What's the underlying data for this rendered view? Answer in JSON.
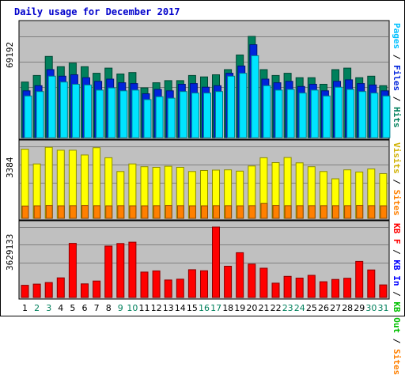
{
  "title": "Daily usage for December 2017",
  "colors": {
    "panel_bg": "#c0c0c0",
    "hits": "#00805c",
    "files": "#0024dc",
    "pages": "#00e4ff",
    "visits": "#ffff00",
    "sites": "#ff8000",
    "kb_in": "#0000ff",
    "kb_out": "#00c000",
    "kb_f": "#ff0000",
    "day_label": "#000000",
    "weekend_label": "#00805c",
    "title": "#0000cc"
  },
  "panels": {
    "top": {
      "max_label": "69192",
      "right_label_parts": [
        {
          "text": "Pages",
          "color": "#00c0ff"
        },
        {
          "text": " / ",
          "color": "#000000"
        },
        {
          "text": "Files",
          "color": "#0024dc"
        },
        {
          "text": " / ",
          "color": "#000000"
        },
        {
          "text": "Hits",
          "color": "#00805c"
        }
      ]
    },
    "middle": {
      "max_label": "3384",
      "right_label_parts": [
        {
          "text": "Visits",
          "color": "#d0b000"
        },
        {
          "text": " / ",
          "color": "#000000"
        },
        {
          "text": "Sites",
          "color": "#ff8000"
        }
      ]
    },
    "bottom": {
      "max_label": "3629133",
      "right_label_parts": [
        {
          "text": "KB F",
          "color": "#ff0000"
        },
        {
          "text": " / ",
          "color": "#000000"
        },
        {
          "text": "KB In",
          "color": "#0000ff"
        },
        {
          "text": " / ",
          "color": "#000000"
        },
        {
          "text": "KB Out",
          "color": "#00c000"
        },
        {
          "text": " / ",
          "color": "#000000"
        },
        {
          "text": "Sites",
          "color": "#ff8000"
        }
      ]
    }
  },
  "chart_data": {
    "type": "bar",
    "title": "Daily usage for December 2017",
    "categories": [
      "1",
      "2",
      "3",
      "4",
      "5",
      "6",
      "7",
      "8",
      "9",
      "10",
      "11",
      "12",
      "13",
      "14",
      "15",
      "16",
      "17",
      "18",
      "19",
      "20",
      "21",
      "22",
      "23",
      "24",
      "25",
      "26",
      "27",
      "28",
      "29",
      "30",
      "31"
    ],
    "weekend_days": [
      "2",
      "3",
      "9",
      "10",
      "16",
      "17",
      "23",
      "24",
      "30",
      "31"
    ],
    "panels": [
      {
        "name": "top",
        "ylim": [
          0,
          69192
        ],
        "series": [
          {
            "name": "Hits",
            "values": [
              38000,
              42500,
              55500,
              48500,
              51000,
              48500,
              44000,
              47500,
              43500,
              44500,
              34000,
              37500,
              39000,
              39000,
              42500,
              41500,
              43000,
              46500,
              56500,
              69192,
              46500,
              42500,
              44000,
              41000,
              41000,
              36500,
              46500,
              47500,
              41000,
              42000,
              35500
            ]
          },
          {
            "name": "Files",
            "values": [
              32000,
              35500,
              46500,
              42000,
              43000,
              41000,
              38500,
              40000,
              37500,
              37000,
              30000,
              33000,
              32000,
              36500,
              37000,
              34500,
              35500,
              44000,
              49000,
              63500,
              40000,
              37500,
              38500,
              35000,
              36500,
              32000,
              38500,
              39500,
              37000,
              36000,
              32000
            ]
          },
          {
            "name": "Pages",
            "values": [
              28500,
              31500,
              42000,
              38000,
              36500,
              36000,
              32500,
              34000,
              32000,
              32500,
              26000,
              28000,
              27000,
              31500,
              30500,
              30500,
              31500,
              42000,
              44000,
              56000,
              35500,
              32500,
              33000,
              30500,
              32500,
              28500,
              34500,
              33000,
              31500,
              30500,
              28500
            ]
          }
        ]
      },
      {
        "name": "middle",
        "ylim": [
          0,
          3384
        ],
        "series": [
          {
            "name": "Visits",
            "values": [
              3250,
              2560,
              3340,
              3200,
              3200,
              2980,
              3320,
              2850,
              2200,
              2560,
              2430,
              2400,
              2450,
              2400,
              2200,
              2250,
              2270,
              2280,
              2220,
              2460,
              2850,
              2620,
              2860,
              2610,
              2430,
              2200,
              1860,
              2280,
              2180,
              2320,
              2100
            ]
          },
          {
            "name": "Sites",
            "values": [
              580,
              590,
              610,
              590,
              600,
              610,
              600,
              590,
              600,
              590,
              590,
              600,
              610,
              600,
              590,
              590,
              600,
              600,
              590,
              600,
              700,
              610,
              600,
              600,
              600,
              600,
              600,
              600,
              610,
              600,
              590
            ]
          }
        ]
      },
      {
        "name": "bottom",
        "ylim": [
          0,
          3629133
        ],
        "series": [
          {
            "name": "KB F",
            "values": [
              630000,
              690000,
              770000,
              1010000,
              2790000,
              700000,
              850000,
              2650000,
              2780000,
              2850000,
              1310000,
              1370000,
              900000,
              940000,
              1430000,
              1380000,
              3629133,
              1610000,
              2310000,
              1720000,
              1510000,
              740000,
              1090000,
              1000000,
              1140000,
              810000,
              930000,
              990000,
              1860000,
              1420000,
              650000
            ]
          }
        ]
      }
    ]
  }
}
